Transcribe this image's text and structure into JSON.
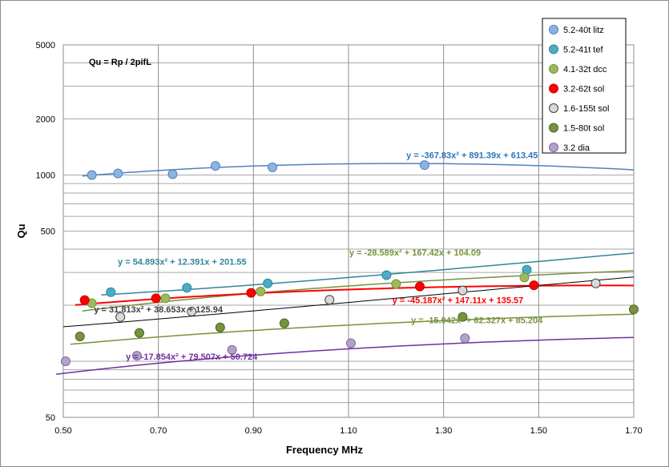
{
  "chart_data": {
    "type": "scatter",
    "title": "",
    "xlabel": "Frequency  MHz",
    "ylabel": "Qu",
    "annotation": "Qu = Rp / 2pifL",
    "xlim": [
      0.5,
      1.7
    ],
    "ylim": [
      50,
      5000
    ],
    "yscale": "log",
    "grid": true,
    "x_ticks": [
      "0.50",
      "0.70",
      "0.90",
      "1.10",
      "1.30",
      "1.50",
      "1.70"
    ],
    "y_ticks": [
      "50",
      "500",
      "1000",
      "2000",
      "5000"
    ],
    "legend_position": "top-right",
    "series": [
      {
        "name": "5.2-40t litz",
        "color": "#8db3e2",
        "edge": "#4f81bd",
        "line_color": "#4f81bd",
        "x": [
          0.56,
          0.615,
          0.73,
          0.82,
          0.94,
          1.26
        ],
        "y": [
          1000,
          1020,
          1010,
          1120,
          1100,
          1130
        ],
        "fit": [
          -367.83,
          891.39,
          613.45
        ],
        "equation": "y = -367.83x² + 891.39x + 613.45",
        "eq_color": "#2e75b6"
      },
      {
        "name": "5.2-41t tef",
        "color": "#4bacc6",
        "edge": "#31859c",
        "line_color": "#31859c",
        "x": [
          0.6,
          0.76,
          0.93,
          1.18,
          1.475
        ],
        "y": [
          235,
          248,
          262,
          290,
          310
        ],
        "fit": [
          54.893,
          12.391,
          201.55
        ],
        "equation": "y = 54.893x² + 12.391x + 201.55",
        "eq_color": "#31859c"
      },
      {
        "name": "4.1-32t dcc",
        "color": "#9bbb59",
        "edge": "#76923c",
        "line_color": "#76923c",
        "x": [
          0.56,
          0.715,
          0.915,
          1.2,
          1.47
        ],
        "y": [
          205,
          218,
          237,
          260,
          282
        ],
        "fit": [
          -28.589,
          167.42,
          104.09
        ],
        "equation": "y = -28.589x² + 167.42x + 104.09",
        "eq_color": "#76923c"
      },
      {
        "name": "3.2-62t sol",
        "color": "#ff0000",
        "edge": "#c00000",
        "line_color": "#ff0000",
        "x": [
          0.545,
          0.695,
          0.895,
          1.25,
          1.49
        ],
        "y": [
          213,
          218,
          233,
          252,
          256
        ],
        "fit": [
          -45.187,
          147.11,
          135.57
        ],
        "equation": "y = -45.187x² + 147.11x + 135.57",
        "eq_color": "#ff0000"
      },
      {
        "name": "1.6-155t sol",
        "color": "#d9d9d9",
        "edge": "#404040",
        "line_color": "#000000",
        "x": [
          0.62,
          0.77,
          1.06,
          1.34,
          1.62
        ],
        "y": [
          173,
          185,
          214,
          240,
          262
        ],
        "fit": [
          31.813,
          38.653,
          125.94
        ],
        "equation": "y = 31.813x² + 38.653x + 125.94",
        "eq_color": "#404040"
      },
      {
        "name": "1.5-80t sol",
        "color": "#77933c",
        "edge": "#4f6228",
        "line_color": "#77933c",
        "x": [
          0.535,
          0.66,
          0.83,
          0.965,
          1.34,
          1.7
        ],
        "y": [
          136,
          142,
          152,
          160,
          173,
          190
        ],
        "fit": [
          -15.942,
          82.327,
          85.204
        ],
        "equation": "y = -15.942x² + 82.327x + 85.204",
        "eq_color": "#77933c"
      },
      {
        "name": "3.2 dia",
        "color": "#b3a2c7",
        "edge": "#8064a2",
        "line_color": "#7030a0",
        "x": [
          0.505,
          0.655,
          0.855,
          1.105,
          1.345
        ],
        "y": [
          100,
          107,
          115,
          125,
          133
        ],
        "fit": [
          -17.854,
          79.507,
          50.724
        ],
        "equation": "y = -17.854x² + 79.507x + 50.724",
        "eq_color": "#7030a0"
      }
    ]
  }
}
